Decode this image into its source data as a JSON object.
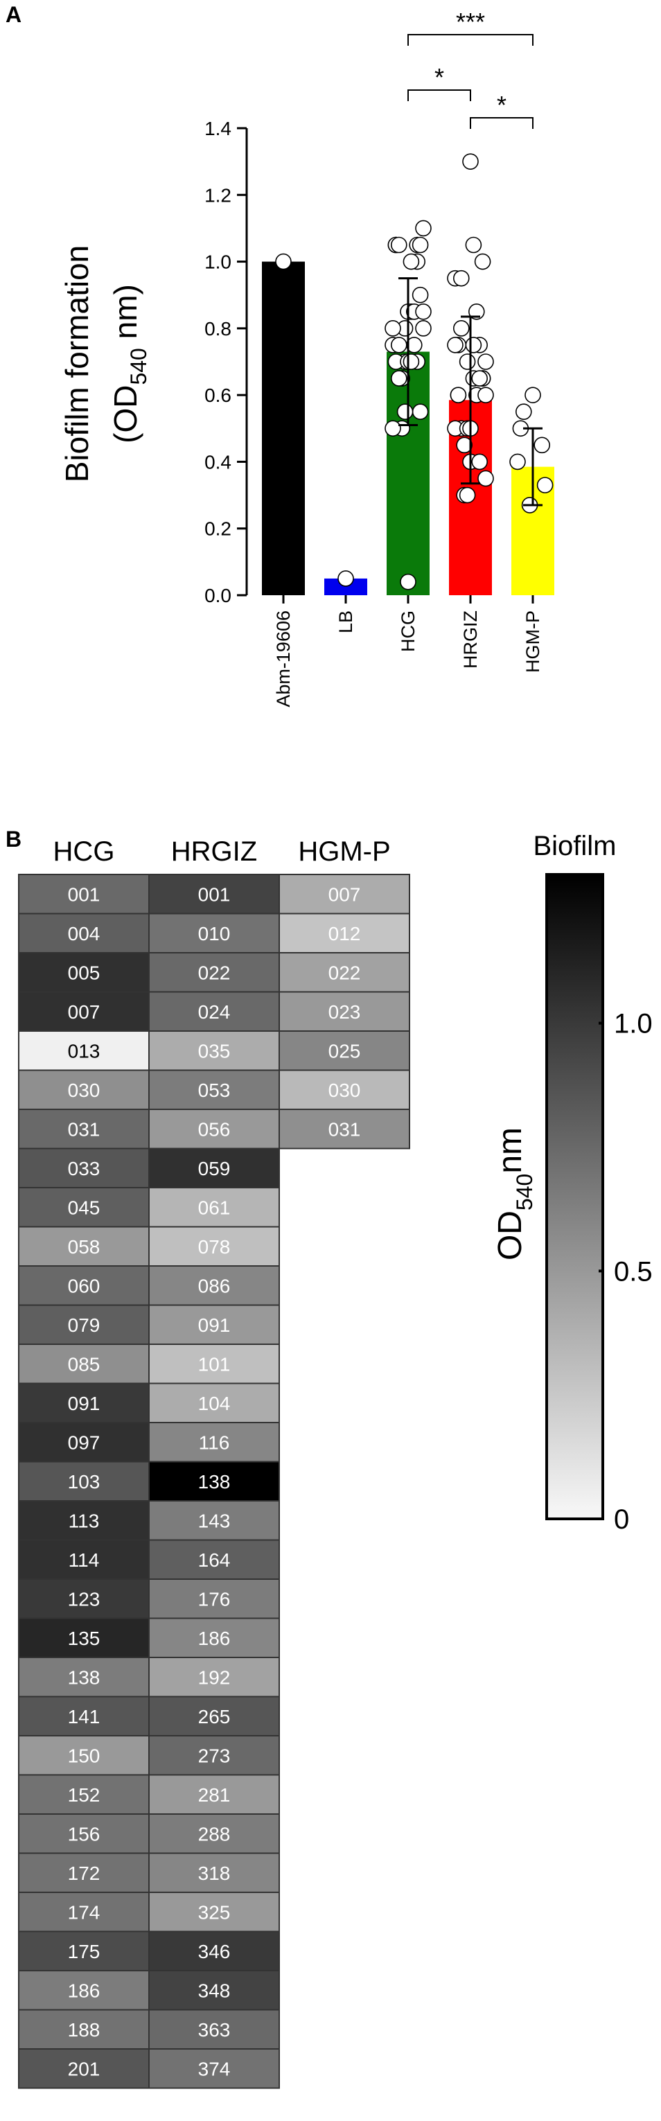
{
  "chart_data": [
    {
      "type": "bar",
      "panel_label": "A",
      "ylabel": {
        "line1": "Biofilm formation",
        "prefix": "(OD",
        "subscript": "540",
        "suffix": " nm)"
      },
      "categories": [
        "Abm-19606",
        "LB",
        "HCG",
        "HRGIZ",
        "HGM-P"
      ],
      "values": [
        1.0,
        0.05,
        0.73,
        0.585,
        0.385
      ],
      "errors": [
        null,
        null,
        0.22,
        0.25,
        0.115
      ],
      "colors": [
        "#000000",
        "#0000ee",
        "#0a7a0a",
        "#ff0000",
        "#ffff00"
      ],
      "ylim": [
        0,
        1.4
      ],
      "yticks": [
        {
          "value": 0,
          "label": "0.0"
        },
        0.2,
        0.4,
        0.6,
        0.8,
        {
          "value": 1,
          "label": "1.0"
        },
        1.2,
        1.4
      ],
      "annotations": [
        {
          "label": "*",
          "between": [
            "HCG",
            "HRGIZ"
          ]
        },
        {
          "label": "*",
          "between": [
            "HRGIZ",
            "HGM-P"
          ]
        },
        {
          "label": "***",
          "between": [
            "HCG",
            "HGM-P"
          ]
        }
      ]
    },
    {
      "type": "heatmap",
      "panel_label": "B",
      "columns": [
        {
          "name": "HCG",
          "labels": [
            "001",
            "004",
            "005",
            "007",
            "013",
            "030",
            "031",
            "033",
            "045",
            "058",
            "060",
            "079",
            "085",
            "091",
            "097",
            "103",
            "113",
            "114",
            "123",
            "135",
            "138",
            "141",
            "150",
            "152",
            "156",
            "172",
            "174",
            "175",
            "186",
            "188",
            "201"
          ],
          "values": [
            0.75,
            0.8,
            1.05,
            1.05,
            0.04,
            0.55,
            0.75,
            0.85,
            0.8,
            0.5,
            0.75,
            0.8,
            0.55,
            1.0,
            1.05,
            0.85,
            1.05,
            1.05,
            1.0,
            1.1,
            0.65,
            0.85,
            0.5,
            0.7,
            0.7,
            0.7,
            0.7,
            0.9,
            0.65,
            0.7,
            0.85
          ]
        },
        {
          "name": "HRGIZ",
          "labels": [
            "001",
            "010",
            "022",
            "024",
            "035",
            "053",
            "056",
            "059",
            "061",
            "078",
            "086",
            "091",
            "101",
            "104",
            "116",
            "138",
            "143",
            "164",
            "176",
            "186",
            "192",
            "265",
            "273",
            "281",
            "288",
            "318",
            "325",
            "346",
            "348",
            "363",
            "374"
          ],
          "values": [
            0.95,
            0.7,
            0.75,
            0.75,
            0.4,
            0.65,
            0.5,
            1.05,
            0.35,
            0.3,
            0.6,
            0.5,
            0.3,
            0.4,
            0.6,
            1.3,
            0.65,
            0.8,
            0.65,
            0.6,
            0.45,
            0.85,
            0.75,
            0.5,
            0.65,
            0.6,
            0.5,
            1.0,
            0.95,
            0.75,
            0.7
          ]
        },
        {
          "name": "HGM-P",
          "labels": [
            "007",
            "012",
            "022",
            "023",
            "025",
            "030",
            "031"
          ],
          "values": [
            0.4,
            0.27,
            0.45,
            0.5,
            0.6,
            0.33,
            0.55
          ]
        }
      ],
      "clim": [
        0,
        1.3
      ],
      "cticks": [
        0,
        0.5,
        {
          "value": 1,
          "label": "1.0"
        }
      ],
      "colorbar_title": "Biofilm",
      "colorbar_label": {
        "prefix": "OD",
        "subscript": "540",
        "suffix": "nm"
      }
    }
  ]
}
